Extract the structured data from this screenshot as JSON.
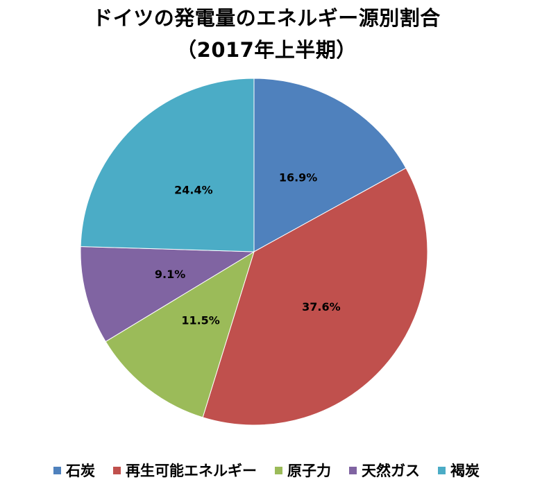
{
  "title_line1": "ドイツの発電量のエネルギー源別割合",
  "title_line2": "（2017年上半期）",
  "chart_data": {
    "type": "pie",
    "title": "ドイツの発電量のエネルギー源別割合（2017年上半期）",
    "categories": [
      "石炭",
      "再生可能エネルギー",
      "原子力",
      "天然ガス",
      "褐炭"
    ],
    "values": [
      16.9,
      37.6,
      11.5,
      9.1,
      24.4
    ],
    "data_labels": [
      "16.9%",
      "37.6%",
      "11.5%",
      "9.1%",
      "24.4%"
    ],
    "colors": [
      "#4F81BD",
      "#C0504D",
      "#9BBB59",
      "#8064A2",
      "#4BACC6"
    ],
    "legend_position": "bottom",
    "start_angle": "12 o'clock, clockwise"
  },
  "legend": [
    {
      "label": "石炭",
      "color": "#4F81BD"
    },
    {
      "label": "再生可能エネルギー",
      "color": "#C0504D"
    },
    {
      "label": "原子力",
      "color": "#9BBB59"
    },
    {
      "label": "天然ガス",
      "color": "#8064A2"
    },
    {
      "label": "褐炭",
      "color": "#4BACC6"
    }
  ]
}
